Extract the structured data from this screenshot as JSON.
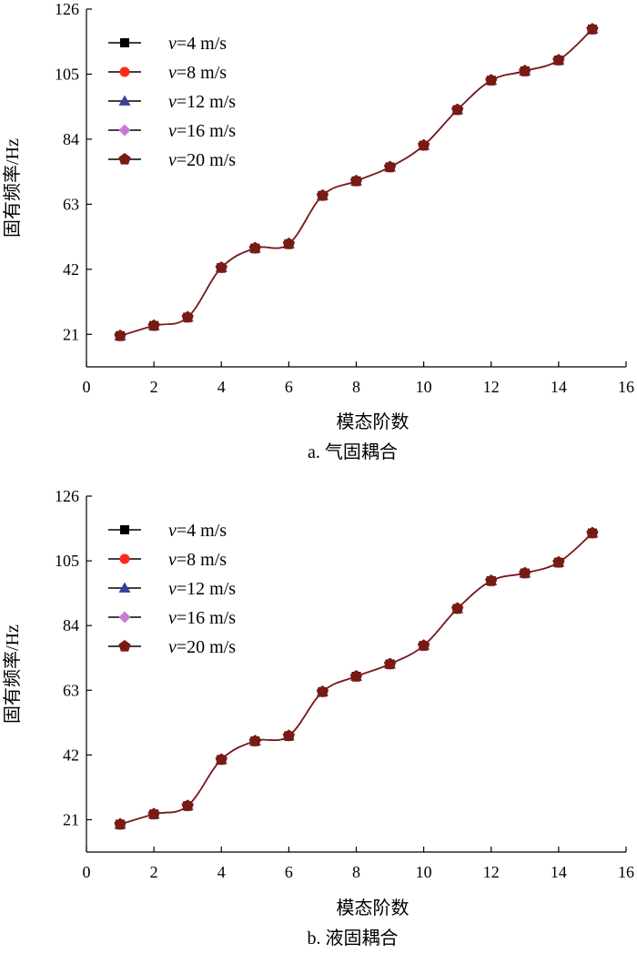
{
  "chart_data": [
    {
      "type": "line",
      "title": "",
      "caption": "a. 气固耦合",
      "xlabel": "模态阶数",
      "ylabel": "固有频率/Hz",
      "xlim": [
        0,
        16
      ],
      "ylim": [
        10.5,
        126
      ],
      "xticks": [
        0,
        2,
        4,
        6,
        8,
        10,
        12,
        14,
        16
      ],
      "yticks": [
        21,
        42,
        63,
        84,
        105,
        126
      ],
      "legend_position": "top-left",
      "x": [
        1,
        2,
        3,
        4,
        5,
        6,
        7,
        8,
        9,
        10,
        11,
        12,
        13,
        14,
        15
      ],
      "series": [
        {
          "name": "v=4 m/s",
          "var": "v",
          "rest": "=4 m/s",
          "color": "#000000",
          "marker": "square",
          "values": [
            20.5,
            23.8,
            26.5,
            42.5,
            48.8,
            50.2,
            65.8,
            70.5,
            75.0,
            82.0,
            93.5,
            103.0,
            106.0,
            109.5,
            119.5
          ]
        },
        {
          "name": "v=8 m/s",
          "var": "v",
          "rest": "=8 m/s",
          "color": "#ff2a1a",
          "marker": "circle",
          "values": [
            20.5,
            23.8,
            26.5,
            42.5,
            48.8,
            50.2,
            65.8,
            70.5,
            75.0,
            82.0,
            93.5,
            103.0,
            106.0,
            109.5,
            119.5
          ]
        },
        {
          "name": "v=12 m/s",
          "var": "v",
          "rest": "=12 m/s",
          "color": "#3a3f9a",
          "marker": "triangle",
          "values": [
            20.5,
            23.8,
            26.5,
            42.5,
            48.8,
            50.2,
            65.8,
            70.5,
            75.0,
            82.0,
            93.5,
            103.0,
            106.0,
            109.5,
            119.5
          ]
        },
        {
          "name": "v=16 m/s",
          "var": "v",
          "rest": "=16 m/s",
          "color": "#c77ad6",
          "marker": "diamond",
          "values": [
            20.5,
            23.8,
            26.5,
            42.5,
            48.8,
            50.2,
            65.8,
            70.5,
            75.0,
            82.0,
            93.5,
            103.0,
            106.0,
            109.5,
            119.5
          ]
        },
        {
          "name": "v=20 m/s",
          "var": "v",
          "rest": "=20 m/s",
          "color": "#7a1a12",
          "marker": "pentagon",
          "values": [
            20.5,
            23.8,
            26.5,
            42.5,
            48.8,
            50.2,
            65.8,
            70.5,
            75.0,
            82.0,
            93.5,
            103.0,
            106.0,
            109.5,
            119.5
          ]
        }
      ]
    },
    {
      "type": "line",
      "title": "",
      "caption": "b. 液固耦合",
      "xlabel": "模态阶数",
      "ylabel": "固有频率/Hz",
      "xlim": [
        0,
        16
      ],
      "ylim": [
        10.5,
        126
      ],
      "xticks": [
        0,
        2,
        4,
        6,
        8,
        10,
        12,
        14,
        16
      ],
      "yticks": [
        21,
        42,
        63,
        84,
        105,
        126
      ],
      "legend_position": "top-left",
      "x": [
        1,
        2,
        3,
        4,
        5,
        6,
        7,
        8,
        9,
        10,
        11,
        12,
        13,
        14,
        15
      ],
      "series": [
        {
          "name": "v=4 m/s",
          "var": "v",
          "rest": "=4 m/s",
          "color": "#000000",
          "marker": "square",
          "values": [
            19.5,
            22.8,
            25.5,
            40.5,
            46.5,
            48.2,
            62.5,
            67.5,
            71.5,
            77.5,
            89.5,
            98.5,
            101.0,
            104.5,
            114.0
          ]
        },
        {
          "name": "v=8 m/s",
          "var": "v",
          "rest": "=8 m/s",
          "color": "#ff2a1a",
          "marker": "circle",
          "values": [
            19.5,
            22.8,
            25.5,
            40.5,
            46.5,
            48.2,
            62.5,
            67.5,
            71.5,
            77.5,
            89.5,
            98.5,
            101.0,
            104.5,
            114.0
          ]
        },
        {
          "name": "v=12 m/s",
          "var": "v",
          "rest": "=12 m/s",
          "color": "#3a3f9a",
          "marker": "triangle",
          "values": [
            19.5,
            22.8,
            25.5,
            40.5,
            46.5,
            48.2,
            62.5,
            67.5,
            71.5,
            77.5,
            89.5,
            98.5,
            101.0,
            104.5,
            114.0
          ]
        },
        {
          "name": "v=16 m/s",
          "var": "v",
          "rest": "=16 m/s",
          "color": "#c77ad6",
          "marker": "diamond",
          "values": [
            19.5,
            22.8,
            25.5,
            40.5,
            46.5,
            48.2,
            62.5,
            67.5,
            71.5,
            77.5,
            89.5,
            98.5,
            101.0,
            104.5,
            114.0
          ]
        },
        {
          "name": "v=20 m/s",
          "var": "v",
          "rest": "=20 m/s",
          "color": "#7a1a12",
          "marker": "pentagon",
          "values": [
            19.5,
            22.8,
            25.5,
            40.5,
            46.5,
            48.2,
            62.5,
            67.5,
            71.5,
            77.5,
            89.5,
            98.5,
            101.0,
            104.5,
            114.0
          ]
        }
      ]
    }
  ]
}
